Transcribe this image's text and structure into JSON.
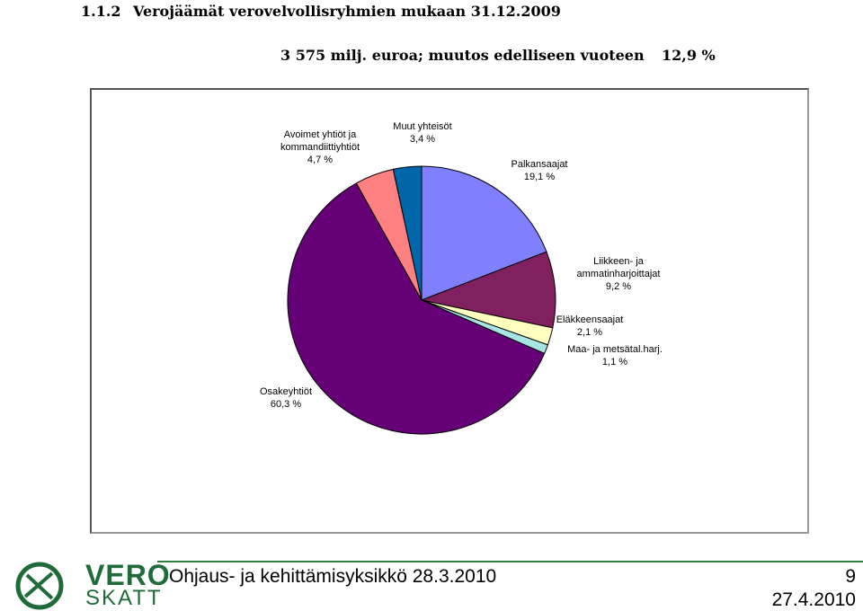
{
  "header": {
    "section": "1.1.2",
    "title": "Verojäämät verovelvollisryhmien mukaan 31.12.2009",
    "summary": "3 575 milj. euroa; muutos edelliseen vuoteen",
    "change": "12,9 %"
  },
  "chart_data": {
    "type": "pie",
    "categories": [
      "Palkansaajat",
      "Liikkeen- ja ammatinharjoittajat",
      "Eläkkeensaajat",
      "Maa- ja metsätal.harj.",
      "Osakeyhtiöt",
      "Avoimet yhtiöt ja kommandiittiyhtiöt",
      "Muut yhteisöt"
    ],
    "values": [
      19.1,
      9.2,
      2.1,
      1.1,
      60.3,
      4.7,
      3.4
    ],
    "value_labels": [
      "19,1 %",
      "9,2 %",
      "2,1 %",
      "1,1 %",
      "60,3 %",
      "4,7 %",
      "3,4 %"
    ],
    "colors": [
      "#8080ff",
      "#80205f",
      "#ffffc0",
      "#a8e4e4",
      "#660077",
      "#ff8080",
      "#0066aa"
    ]
  },
  "footer": {
    "logo_top": "VERO",
    "logo_bottom": "SKATT",
    "unit": "Ohjaus- ja kehittämisyksikkö 28.3.2010",
    "page": "9",
    "date": "27.4.2010"
  }
}
